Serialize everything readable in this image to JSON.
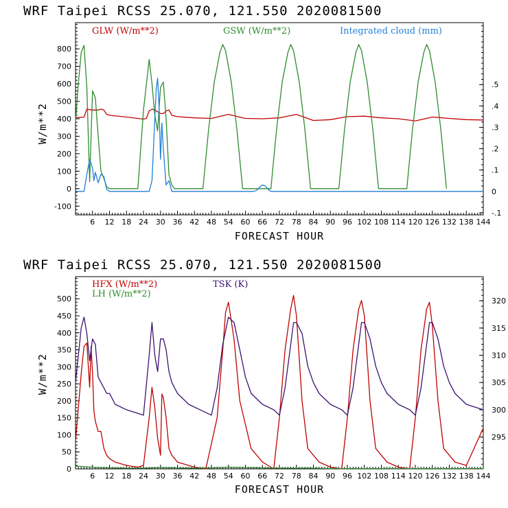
{
  "chart_data": [
    {
      "type": "line",
      "title": "WRF   Taipei RCSS   25.070, 121.550  2020081500",
      "xlabel": "FORECAST HOUR",
      "ylabel": "W/m**2",
      "xlim": [
        0,
        144
      ],
      "ylim": [
        -150,
        950
      ],
      "y2lim": [
        -0.11,
        0.79
      ],
      "xticks": [
        "6",
        "12",
        "18",
        "24",
        "30",
        "36",
        "42",
        "48",
        "54",
        "60",
        "66",
        "72",
        "78",
        "84",
        "90",
        "96",
        "102",
        "108",
        "114",
        "120",
        "126",
        "132",
        "138",
        "144"
      ],
      "yticks": [
        "-100",
        "0",
        "100",
        "200",
        "300",
        "400",
        "500",
        "600",
        "700",
        "800"
      ],
      "y2ticks": [
        ".5",
        ".4",
        ".3",
        ".2",
        ".1",
        "0",
        "-.1"
      ],
      "legend": [
        {
          "label": "GLW (W/m**2)",
          "color": "#c00000"
        },
        {
          "label": "GSW (W/m**2)",
          "color": "#2e8b2e"
        },
        {
          "label": "Integrated cloud (mm)",
          "color": "#1f7fd8"
        }
      ],
      "series": [
        {
          "name": "GLW",
          "axis": "left",
          "color": "#c00000",
          "x": [
            0,
            3,
            4,
            6,
            7,
            8,
            9,
            10,
            11,
            12,
            18,
            24,
            25,
            26,
            27,
            28,
            29,
            30,
            31,
            32,
            33,
            34,
            36,
            42,
            48,
            54,
            60,
            66,
            72,
            78,
            84,
            90,
            96,
            102,
            108,
            114,
            120,
            126,
            132,
            138,
            144
          ],
          "y": [
            405,
            410,
            455,
            450,
            450,
            450,
            455,
            450,
            425,
            420,
            410,
            398,
            402,
            445,
            455,
            450,
            440,
            430,
            430,
            445,
            450,
            420,
            412,
            405,
            402,
            425,
            402,
            400,
            405,
            425,
            390,
            395,
            412,
            415,
            405,
            400,
            388,
            410,
            402,
            395,
            393
          ]
        },
        {
          "name": "GSW",
          "axis": "left",
          "color": "#2e8b2e",
          "x": [
            0,
            1,
            2,
            3,
            4,
            5,
            6,
            7,
            8,
            9,
            10,
            11,
            12,
            22,
            24,
            26,
            27,
            28,
            29,
            30,
            31,
            32,
            33,
            34,
            35,
            45,
            47,
            49,
            51,
            52,
            53,
            55,
            57,
            59,
            69,
            71,
            73,
            75,
            76,
            77,
            79,
            81,
            83,
            93,
            95,
            97,
            99,
            100,
            101,
            103,
            105,
            107,
            117,
            119,
            121,
            123,
            124,
            125,
            127,
            129,
            131
          ],
          "y": [
            380,
            600,
            780,
            820,
            580,
            40,
            560,
            520,
            300,
            100,
            60,
            10,
            0,
            0,
            450,
            740,
            600,
            420,
            330,
            580,
            610,
            400,
            80,
            20,
            0,
            0,
            340,
            610,
            780,
            825,
            790,
            610,
            340,
            0,
            0,
            340,
            610,
            780,
            825,
            790,
            610,
            340,
            0,
            0,
            340,
            610,
            780,
            825,
            790,
            610,
            340,
            0,
            0,
            340,
            610,
            780,
            825,
            790,
            610,
            340,
            0
          ]
        },
        {
          "name": "Integrated cloud",
          "axis": "right",
          "color": "#1f7fd8",
          "x": [
            0,
            3,
            4,
            5,
            6,
            6.5,
            7,
            8,
            9,
            10,
            11,
            12,
            26,
            27,
            28,
            28.5,
            29,
            29.5,
            30,
            30.5,
            31,
            32,
            33,
            34,
            63,
            64,
            65,
            66,
            67,
            68,
            69,
            144
          ],
          "y": [
            0,
            0,
            0.08,
            0.15,
            0.11,
            0.05,
            0.09,
            0.04,
            0.08,
            0.07,
            0.01,
            0,
            0,
            0.05,
            0.34,
            0.48,
            0.53,
            0.4,
            0.15,
            0.32,
            0.2,
            0.03,
            0.05,
            0,
            0,
            0.005,
            0.02,
            0.03,
            0.025,
            0.01,
            0,
            0
          ]
        }
      ]
    },
    {
      "type": "line",
      "title": "WRF   Taipei RCSS   25.070, 121.550  2020081500",
      "xlabel": "FORECAST HOUR",
      "ylabel": "W/m**2",
      "xlim": [
        0,
        144
      ],
      "ylim": [
        0,
        565
      ],
      "y2lim": [
        289.15,
        324.43
      ],
      "xticks": [
        "6",
        "12",
        "18",
        "24",
        "30",
        "36",
        "42",
        "48",
        "54",
        "60",
        "66",
        "72",
        "78",
        "84",
        "90",
        "96",
        "102",
        "108",
        "114",
        "120",
        "126",
        "132",
        "138",
        "144"
      ],
      "yticks": [
        "0",
        "50",
        "100",
        "150",
        "200",
        "250",
        "300",
        "350",
        "400",
        "450",
        "500"
      ],
      "y2ticks": [
        "295",
        "300",
        "305",
        "310",
        "315",
        "320"
      ],
      "legend": [
        {
          "label": "HFX (W/m**2)",
          "color": "#c00000"
        },
        {
          "label": "LH  (W/m**2)",
          "color": "#2e8b2e"
        },
        {
          "label": "TSK (K)",
          "color": "#3a1070"
        }
      ],
      "series": [
        {
          "name": "HFX",
          "axis": "left",
          "color": "#c00000",
          "x": [
            0,
            2,
            3,
            4,
            5,
            5.5,
            6,
            6.5,
            7,
            8,
            9,
            10,
            11,
            12,
            14,
            18,
            22,
            24,
            26,
            27,
            28,
            29,
            30,
            30.5,
            31,
            32,
            33,
            34,
            36,
            42,
            46,
            50,
            52,
            53,
            54,
            56,
            58,
            62,
            66,
            68,
            70,
            72,
            74,
            76,
            77,
            78,
            80,
            82,
            86,
            90,
            94,
            96,
            98,
            100,
            101,
            102,
            104,
            106,
            110,
            114,
            118,
            120,
            122,
            124,
            125,
            126,
            128,
            130,
            134,
            138,
            144
          ],
          "y": [
            80,
            280,
            360,
            370,
            240,
            360,
            280,
            170,
            140,
            110,
            110,
            60,
            40,
            30,
            20,
            10,
            5,
            10,
            150,
            240,
            180,
            90,
            40,
            220,
            210,
            150,
            60,
            40,
            20,
            5,
            0,
            150,
            350,
            460,
            490,
            380,
            200,
            60,
            20,
            10,
            0,
            150,
            350,
            470,
            510,
            450,
            200,
            60,
            20,
            5,
            0,
            150,
            350,
            470,
            495,
            450,
            200,
            60,
            20,
            5,
            0,
            150,
            350,
            470,
            490,
            420,
            200,
            60,
            20,
            10,
            120
          ]
        },
        {
          "name": "LH",
          "axis": "left",
          "color": "#2e8b2e",
          "x": [
            0,
            6,
            12,
            18,
            24,
            30,
            36,
            42,
            48,
            54,
            60,
            66,
            72,
            78,
            84,
            90,
            96,
            102,
            108,
            114,
            120,
            126,
            132,
            138,
            144
          ],
          "y": [
            8,
            5,
            3,
            2,
            2,
            4,
            3,
            2,
            3,
            5,
            4,
            3,
            2,
            2,
            2,
            1,
            1,
            1,
            1,
            1,
            1,
            1,
            1,
            1,
            1
          ]
        },
        {
          "name": "TSK",
          "axis": "right",
          "color": "#3a1070",
          "x": [
            0,
            2,
            3,
            4,
            5,
            6,
            7,
            8,
            9,
            10,
            11,
            12,
            14,
            18,
            24,
            26,
            27,
            28,
            29,
            30,
            31,
            32,
            33,
            34,
            36,
            40,
            44,
            48,
            50,
            52,
            54,
            56,
            58,
            60,
            62,
            66,
            70,
            72,
            74,
            76,
            77,
            78,
            80,
            82,
            84,
            86,
            90,
            94,
            96,
            98,
            100,
            101,
            102,
            104,
            106,
            108,
            110,
            114,
            118,
            120,
            122,
            124,
            125,
            126,
            128,
            130,
            132,
            134,
            138,
            144
          ],
          "y": [
            305,
            315,
            317,
            314,
            309,
            313,
            312,
            306,
            305,
            304,
            303,
            303,
            301,
            300,
            299,
            310,
            316,
            310,
            307,
            313,
            313,
            311,
            307,
            305,
            303,
            301,
            300,
            299,
            304,
            312,
            317,
            316,
            311,
            306,
            303,
            301,
            300,
            299,
            304,
            312,
            316,
            316,
            314,
            308,
            305,
            303,
            301,
            300,
            299,
            304,
            312,
            316,
            316,
            313,
            308,
            305,
            303,
            301,
            300,
            299,
            304,
            312,
            316,
            316,
            313,
            308,
            305,
            303,
            301,
            300
          ]
        }
      ]
    }
  ]
}
